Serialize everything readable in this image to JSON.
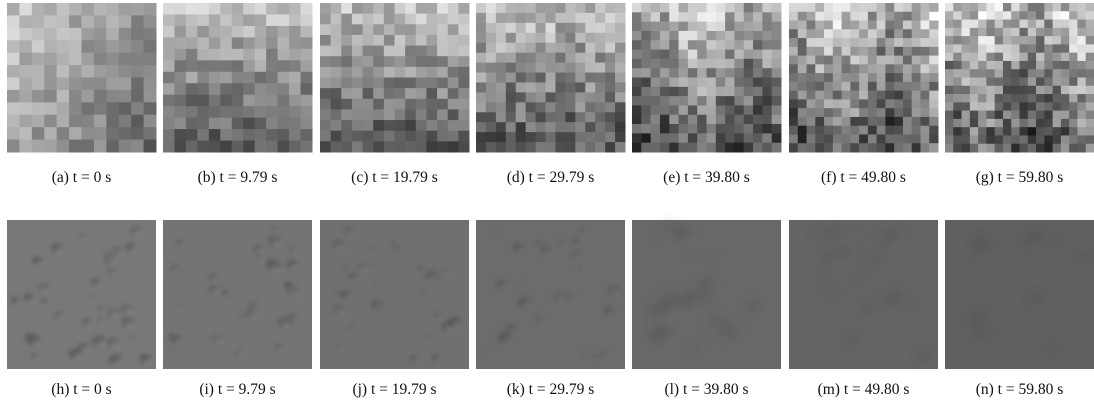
{
  "figure": {
    "rows": [
      {
        "panels": [
          {
            "caption": "(a) t = 0 s"
          },
          {
            "caption": "(b) t = 9.79 s"
          },
          {
            "caption": "(c) t = 19.79 s"
          },
          {
            "caption": "(d) t = 29.79 s"
          },
          {
            "caption": "(e) t = 39.80 s"
          },
          {
            "caption": "(f) t = 49.80 s"
          },
          {
            "caption": "(g) t = 59.80 s"
          }
        ]
      },
      {
        "panels": [
          {
            "caption": "(h) t = 0 s"
          },
          {
            "caption": "(i) t = 9.79 s"
          },
          {
            "caption": "(j) t = 19.79 s"
          },
          {
            "caption": "(k) t = 29.79 s"
          },
          {
            "caption": "(l) t = 39.80 s"
          },
          {
            "caption": "(m) t = 49.80 s"
          },
          {
            "caption": "(n) t = 59.80 s"
          }
        ]
      }
    ]
  }
}
